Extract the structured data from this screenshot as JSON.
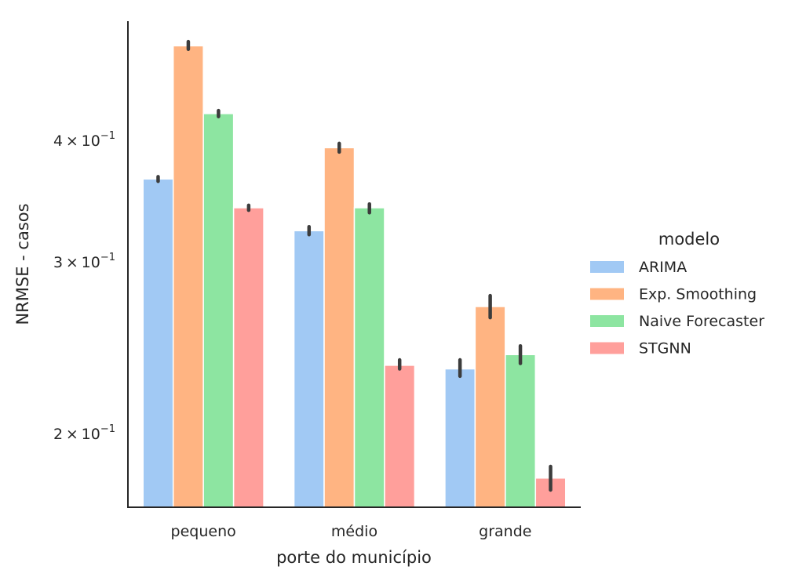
{
  "chart_data": {
    "type": "bar",
    "xlabel": "porte do município",
    "ylabel": "NRMSE - casos",
    "yscale": "log",
    "ylim": [
      0.168,
      0.53
    ],
    "categories": [
      "pequeno",
      "médio",
      "grande"
    ],
    "yticks": [
      {
        "value": 0.2,
        "mantissa": "2",
        "base": "10",
        "exp": "−1"
      },
      {
        "value": 0.3,
        "mantissa": "3",
        "base": "10",
        "exp": "−1"
      },
      {
        "value": 0.4,
        "mantissa": "4",
        "base": "10",
        "exp": "−1"
      }
    ],
    "legend": {
      "title": "modelo",
      "position": "right"
    },
    "grid": false,
    "series": [
      {
        "name": "ARIMA",
        "color": "#a1c9f4",
        "values": [
          0.365,
          0.323,
          0.233
        ],
        "errors": [
          [
            0.363,
            0.367
          ],
          [
            0.32,
            0.326
          ],
          [
            0.229,
            0.238
          ]
        ]
      },
      {
        "name": "Exp. Smoothing",
        "color": "#ffb482",
        "values": [
          0.5,
          0.393,
          0.27
        ],
        "errors": [
          [
            0.496,
            0.505
          ],
          [
            0.389,
            0.397
          ],
          [
            0.263,
            0.277
          ]
        ]
      },
      {
        "name": "Naive Forecaster",
        "color": "#8de5a1",
        "values": [
          0.426,
          0.341,
          0.241
        ],
        "errors": [
          [
            0.423,
            0.429
          ],
          [
            0.337,
            0.344
          ],
          [
            0.236,
            0.246
          ]
        ]
      },
      {
        "name": "STGNN",
        "color": "#ff9f9b",
        "values": [
          0.341,
          0.235,
          0.18
        ],
        "errors": [
          [
            0.339,
            0.343
          ],
          [
            0.233,
            0.238
          ],
          [
            0.175,
            0.185
          ]
        ]
      }
    ]
  }
}
